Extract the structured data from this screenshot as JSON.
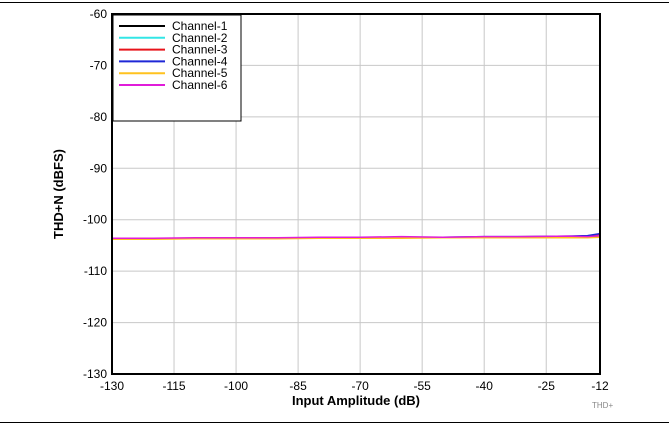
{
  "chart_data": {
    "type": "line",
    "xlabel": "Input Amplitude (dB)",
    "ylabel": "THD+N (dBFS)",
    "xlim": [
      -130,
      -12
    ],
    "ylim": [
      -130,
      -60
    ],
    "x_ticks": [
      -130,
      -115,
      -100,
      -85,
      -70,
      -55,
      -40,
      -25,
      -12
    ],
    "y_ticks": [
      -60,
      -70,
      -80,
      -90,
      -100,
      -110,
      -120,
      -130
    ],
    "grid": true,
    "legend_position": "top-left",
    "x": [
      -130,
      -120,
      -110,
      -100,
      -90,
      -80,
      -70,
      -60,
      -50,
      -40,
      -30,
      -20,
      -15,
      -12
    ],
    "series": [
      {
        "name": "Channel-1",
        "color": "#000000",
        "values": [
          -103.7,
          -103.7,
          -103.6,
          -103.6,
          -103.6,
          -103.6,
          -103.5,
          -103.5,
          -103.5,
          -103.4,
          -103.4,
          -103.4,
          -103.3,
          -103.2
        ]
      },
      {
        "name": "Channel-2",
        "color": "#33e6e6",
        "values": [
          -103.8,
          -103.7,
          -103.7,
          -103.6,
          -103.6,
          -103.5,
          -103.5,
          -103.5,
          -103.4,
          -103.4,
          -103.4,
          -103.3,
          -103.3,
          -103.1
        ]
      },
      {
        "name": "Channel-3",
        "color": "#e8141b",
        "values": [
          -103.6,
          -103.6,
          -103.6,
          -103.6,
          -103.5,
          -103.5,
          -103.5,
          -103.4,
          -103.4,
          -103.4,
          -103.3,
          -103.3,
          -103.2,
          -103.0
        ]
      },
      {
        "name": "Channel-4",
        "color": "#1f28d6",
        "values": [
          -103.7,
          -103.6,
          -103.6,
          -103.6,
          -103.6,
          -103.5,
          -103.4,
          -103.4,
          -103.4,
          -103.3,
          -103.3,
          -103.2,
          -103.1,
          -102.7
        ]
      },
      {
        "name": "Channel-5",
        "color": "#ffc21f",
        "values": [
          -103.8,
          -103.8,
          -103.7,
          -103.7,
          -103.7,
          -103.6,
          -103.6,
          -103.6,
          -103.5,
          -103.5,
          -103.5,
          -103.5,
          -103.5,
          -103.4
        ]
      },
      {
        "name": "Channel-6",
        "color": "#e01cd9",
        "values": [
          -103.6,
          -103.6,
          -103.5,
          -103.5,
          -103.5,
          -103.4,
          -103.4,
          -103.3,
          -103.4,
          -103.3,
          -103.3,
          -103.2,
          -103.3,
          -103.1
        ]
      }
    ],
    "figure_id": "THD+"
  }
}
